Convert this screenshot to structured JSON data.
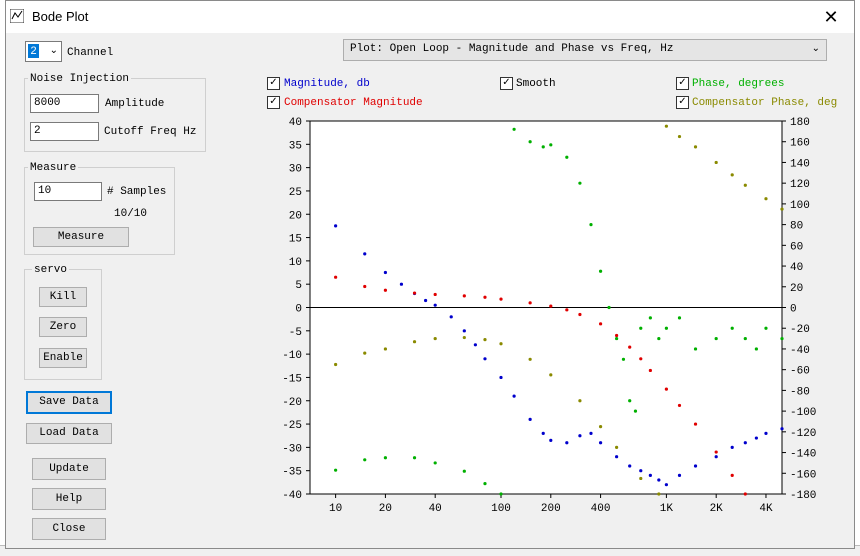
{
  "window": {
    "title": "Bode Plot",
    "close_glyph": "✕"
  },
  "channel": {
    "value": "2",
    "label": "Channel"
  },
  "noise_injection": {
    "title": "Noise Injection",
    "amplitude_value": "8000",
    "amplitude_label": "Amplitude",
    "cutoff_value": "2",
    "cutoff_label": "Cutoff Freq Hz"
  },
  "measure": {
    "title": "Measure",
    "samples_value": "10",
    "samples_label": "# Samples",
    "progress": "10/10",
    "button": "Measure"
  },
  "servo": {
    "title": "servo",
    "kill": "Kill",
    "zero": "Zero",
    "enable": "Enable"
  },
  "buttons": {
    "save": "Save Data",
    "load": "Load Data",
    "update": "Update",
    "help": "Help",
    "close": "Close"
  },
  "plot_select": {
    "value": "Plot: Open Loop - Magnitude and Phase vs Freq, Hz"
  },
  "legend": {
    "magnitude": "Magnitude, db",
    "comp_magnitude": "Compensator Magnitude",
    "smooth": "Smooth",
    "phase": "Phase, degrees",
    "comp_phase": "Compensator Phase, deg"
  },
  "colors": {
    "magnitude": "#0000cc",
    "comp_magnitude": "#e00000",
    "phase": "#00b000",
    "comp_phase": "#8a8a00"
  },
  "chart_data": {
    "type": "scatter",
    "x_scale": "log",
    "xlim": [
      7,
      5000
    ],
    "ylim_left": [
      -40,
      40
    ],
    "ylim_right": [
      -180,
      180
    ],
    "x_ticks": [
      10,
      20,
      40,
      100,
      200,
      400,
      1000,
      2000,
      4000
    ],
    "x_tick_labels": [
      "10",
      "20",
      "40",
      "100",
      "200",
      "400",
      "1K",
      "2K",
      "4K"
    ],
    "y_left_ticks": [
      40,
      35,
      30,
      25,
      20,
      15,
      10,
      5,
      0,
      -5,
      -10,
      -15,
      -20,
      -25,
      -30,
      -35,
      -40
    ],
    "y_right_ticks": [
      180,
      160,
      140,
      120,
      100,
      80,
      60,
      40,
      20,
      0,
      -20,
      -40,
      -60,
      -80,
      -100,
      -120,
      -140,
      -160,
      -180
    ],
    "series": [
      {
        "name": "Magnitude, db",
        "axis": "left",
        "x": [
          10,
          15,
          20,
          25,
          30,
          35,
          40,
          50,
          60,
          70,
          80,
          100,
          120,
          150,
          180,
          200,
          250,
          300,
          350,
          400,
          500,
          600,
          700,
          800,
          900,
          1000,
          1200,
          1500,
          2000,
          2500,
          3000,
          3500,
          4000,
          5000
        ],
        "y": [
          17.5,
          11.5,
          7.5,
          5,
          3,
          1.5,
          0.5,
          -2,
          -5,
          -8,
          -11,
          -15,
          -19,
          -24,
          -27,
          -28.5,
          -29,
          -27.5,
          -27,
          -29,
          -32,
          -34,
          -35,
          -36,
          -37,
          -38,
          -36,
          -34,
          -32,
          -30,
          -29,
          -28,
          -27,
          -26
        ]
      },
      {
        "name": "Compensator Magnitude",
        "axis": "left",
        "x": [
          10,
          15,
          20,
          30,
          40,
          60,
          80,
          100,
          150,
          200,
          250,
          300,
          400,
          500,
          600,
          700,
          800,
          1000,
          1200,
          1500,
          2000,
          2500,
          3000
        ],
        "y": [
          6.5,
          4.5,
          3.7,
          3.1,
          2.8,
          2.5,
          2.2,
          1.8,
          1,
          0.3,
          -0.5,
          -1.5,
          -3.5,
          -6,
          -8.5,
          -11,
          -13.5,
          -17.5,
          -21,
          -25,
          -31,
          -36,
          -40
        ]
      },
      {
        "name": "Phase, degrees",
        "axis": "right",
        "x": [
          10,
          15,
          20,
          30,
          40,
          60,
          80,
          100,
          120,
          150,
          180,
          200,
          250,
          300,
          350,
          400,
          450,
          500,
          550,
          600,
          650,
          700,
          800,
          900,
          1000,
          1200,
          1500,
          2000,
          2500,
          3000,
          3500,
          4000,
          5000
        ],
        "y": [
          -157,
          -147,
          -145,
          -145,
          -150,
          -158,
          -170,
          -180,
          172,
          160,
          155,
          157,
          145,
          120,
          80,
          35,
          0,
          -30,
          -50,
          -90,
          -100,
          -20,
          -10,
          -30,
          -20,
          -10,
          -40,
          -30,
          -20,
          -30,
          -40,
          -20,
          -30
        ]
      },
      {
        "name": "Compensator Phase, deg",
        "axis": "right",
        "x": [
          10,
          15,
          20,
          30,
          40,
          60,
          80,
          100,
          150,
          200,
          300,
          400,
          500,
          700,
          900,
          1000,
          1200,
          1500,
          2000,
          2500,
          3000,
          4000,
          5000
        ],
        "y": [
          -55,
          -44,
          -40,
          -33,
          -30,
          -29,
          -31,
          -35,
          -50,
          -65,
          -90,
          -115,
          -135,
          -165,
          -180,
          175,
          165,
          155,
          140,
          128,
          118,
          105,
          95
        ]
      }
    ]
  }
}
